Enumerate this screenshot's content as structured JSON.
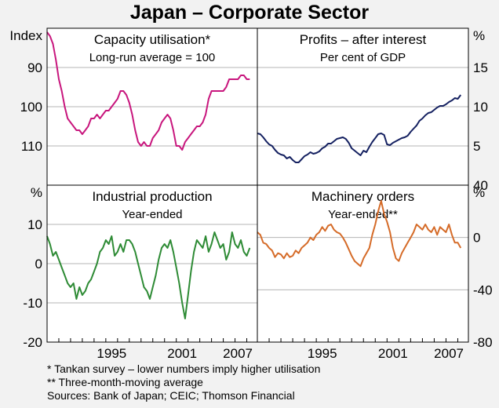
{
  "title": "Japan – Corporate Sector",
  "footnotes": [
    "*   Tankan survey – lower numbers imply higher utilisation",
    "** Three-month-moving average",
    "Sources: Bank of Japan; CEIC; Thomson Financial"
  ],
  "colors": {
    "background": "#f2f2f2",
    "plot_background": "#ffffff",
    "capacity": "#c8167d",
    "profits": "#142060",
    "industrial": "#2e8b35",
    "machinery": "#d56b28",
    "grid": "#b5b5b5"
  },
  "x_axis": {
    "range": [
      1990.0,
      2007.9
    ],
    "ticks": [
      "1995",
      "2001",
      "2007"
    ],
    "tick_years": [
      1995,
      2001,
      2007
    ]
  },
  "chart_data": [
    {
      "type": "line",
      "panel": "capacity",
      "title": "Capacity utilisation*",
      "subtitle": "Long-run average = 100",
      "unit_label": "Index",
      "ylim": [
        80,
        120
      ],
      "inverted": true,
      "yticks": [
        "90",
        "100",
        "110"
      ],
      "ytick_values": [
        90,
        100,
        110
      ],
      "series": [
        {
          "name": "Capacity utilisation",
          "color": "#c8167d",
          "x": [
            1990.0,
            1990.25,
            1990.5,
            1990.75,
            1991.0,
            1991.25,
            1991.5,
            1991.75,
            1992.0,
            1992.25,
            1992.5,
            1992.75,
            1993.0,
            1993.25,
            1993.5,
            1993.75,
            1994.0,
            1994.25,
            1994.5,
            1994.75,
            1995.0,
            1995.25,
            1995.5,
            1995.75,
            1996.0,
            1996.25,
            1996.5,
            1996.75,
            1997.0,
            1997.25,
            1997.5,
            1997.75,
            1998.0,
            1998.25,
            1998.5,
            1998.75,
            1999.0,
            1999.25,
            1999.5,
            1999.75,
            2000.0,
            2000.25,
            2000.5,
            2000.75,
            2001.0,
            2001.25,
            2001.5,
            2001.75,
            2002.0,
            2002.25,
            2002.5,
            2002.75,
            2003.0,
            2003.25,
            2003.5,
            2003.75,
            2004.0,
            2004.25,
            2004.5,
            2004.75,
            2005.0,
            2005.25,
            2005.5,
            2005.75,
            2006.0,
            2006.25,
            2006.5,
            2006.75,
            2007.0,
            2007.25
          ],
          "values": [
            81,
            82,
            84,
            88,
            93,
            96,
            100,
            103,
            104,
            105,
            106,
            106,
            107,
            106,
            105,
            103,
            103,
            102,
            103,
            102,
            101,
            101,
            100,
            99,
            98,
            96,
            96,
            97,
            99,
            102,
            106,
            109,
            110,
            109,
            110,
            110,
            108,
            107,
            106,
            104,
            103,
            102,
            103,
            106,
            110,
            110,
            111,
            109,
            108,
            107,
            106,
            105,
            105,
            104,
            102,
            98,
            96,
            96,
            96,
            96,
            96,
            95,
            93,
            93,
            93,
            93,
            92,
            92,
            93,
            93
          ]
        }
      ]
    },
    {
      "type": "line",
      "panel": "profits",
      "title": "Profits – after interest",
      "subtitle": "Per cent of GDP",
      "unit_label": "%",
      "ylim": [
        0,
        20
      ],
      "inverted": false,
      "yticks": [
        "5",
        "10",
        "15"
      ],
      "ytick_values": [
        5,
        10,
        15
      ],
      "series": [
        {
          "name": "Profits – after interest",
          "color": "#142060",
          "x": [
            1990.0,
            1990.25,
            1990.5,
            1990.75,
            1991.0,
            1991.25,
            1991.5,
            1991.75,
            1992.0,
            1992.25,
            1992.5,
            1992.75,
            1993.0,
            1993.25,
            1993.5,
            1993.75,
            1994.0,
            1994.25,
            1994.5,
            1994.75,
            1995.0,
            1995.25,
            1995.5,
            1995.75,
            1996.0,
            1996.25,
            1996.5,
            1996.75,
            1997.0,
            1997.25,
            1997.5,
            1997.75,
            1998.0,
            1998.25,
            1998.5,
            1998.75,
            1999.0,
            1999.25,
            1999.5,
            1999.75,
            2000.0,
            2000.25,
            2000.5,
            2000.75,
            2001.0,
            2001.25,
            2001.5,
            2001.75,
            2002.0,
            2002.25,
            2002.5,
            2002.75,
            2003.0,
            2003.25,
            2003.5,
            2003.75,
            2004.0,
            2004.25,
            2004.5,
            2004.75,
            2005.0,
            2005.25,
            2005.5,
            2005.75,
            2006.0,
            2006.25,
            2006.5,
            2006.75,
            2007.0,
            2007.25
          ],
          "values": [
            6.6,
            6.5,
            6.1,
            5.6,
            5.2,
            5.0,
            4.5,
            4.1,
            3.9,
            3.8,
            3.4,
            3.6,
            3.2,
            2.9,
            2.9,
            3.3,
            3.7,
            3.9,
            4.2,
            4.0,
            4.1,
            4.3,
            4.7,
            4.9,
            5.3,
            5.3,
            5.6,
            5.9,
            6.0,
            6.1,
            5.9,
            5.4,
            4.7,
            4.4,
            4.1,
            3.8,
            4.4,
            4.2,
            4.9,
            5.5,
            6.0,
            6.5,
            6.6,
            6.4,
            5.2,
            5.1,
            5.4,
            5.6,
            5.8,
            6.0,
            6.1,
            6.3,
            6.8,
            7.2,
            7.6,
            8.2,
            8.5,
            8.9,
            9.2,
            9.3,
            9.6,
            9.9,
            10.1,
            10.1,
            10.3,
            10.6,
            10.8,
            11.1,
            11.0,
            11.5
          ]
        }
      ]
    },
    {
      "type": "line",
      "panel": "industrial",
      "title": "Industrial production",
      "subtitle": "Year-ended",
      "unit_label": "%",
      "ylim": [
        -20,
        20
      ],
      "inverted": false,
      "yticks": [
        "-20",
        "-10",
        "0",
        "10"
      ],
      "ytick_values": [
        -20,
        -10,
        0,
        10
      ],
      "series": [
        {
          "name": "Industrial production",
          "color": "#2e8b35",
          "x": [
            1990.0,
            1990.25,
            1990.5,
            1990.75,
            1991.0,
            1991.25,
            1991.5,
            1991.75,
            1992.0,
            1992.25,
            1992.5,
            1992.75,
            1993.0,
            1993.25,
            1993.5,
            1993.75,
            1994.0,
            1994.25,
            1994.5,
            1994.75,
            1995.0,
            1995.25,
            1995.5,
            1995.75,
            1996.0,
            1996.25,
            1996.5,
            1996.75,
            1997.0,
            1997.25,
            1997.5,
            1997.75,
            1998.0,
            1998.25,
            1998.5,
            1998.75,
            1999.0,
            1999.25,
            1999.5,
            1999.75,
            2000.0,
            2000.25,
            2000.5,
            2000.75,
            2001.0,
            2001.25,
            2001.5,
            2001.75,
            2002.0,
            2002.25,
            2002.5,
            2002.75,
            2003.0,
            2003.25,
            2003.5,
            2003.75,
            2004.0,
            2004.25,
            2004.5,
            2004.75,
            2005.0,
            2005.25,
            2005.5,
            2005.75,
            2006.0,
            2006.25,
            2006.5,
            2006.75,
            2007.0,
            2007.25
          ],
          "values": [
            7,
            5,
            2,
            3,
            1,
            -1,
            -3,
            -5,
            -6,
            -5,
            -9,
            -6,
            -8,
            -7,
            -5,
            -4,
            -2,
            0,
            3,
            4,
            6,
            5,
            7,
            2,
            3,
            5,
            3,
            6,
            6,
            5,
            3,
            0,
            -3,
            -6,
            -7,
            -9,
            -6,
            -3,
            1,
            4,
            5,
            4,
            6,
            3,
            -1,
            -5,
            -10,
            -14,
            -8,
            -2,
            3,
            6,
            5,
            4,
            7,
            3,
            5,
            8,
            6,
            4,
            5,
            1,
            3,
            8,
            5,
            4,
            6,
            3,
            2,
            4
          ]
        }
      ]
    },
    {
      "type": "line",
      "panel": "machinery",
      "title": "Machinery orders",
      "subtitle": "Year-ended**",
      "unit_label": "%",
      "ylim": [
        -80,
        40
      ],
      "inverted": false,
      "yticks": [
        "-80",
        "-40",
        "0",
        "40"
      ],
      "ytick_values": [
        -80,
        -40,
        0,
        40
      ],
      "series": [
        {
          "name": "Machinery orders",
          "color": "#d56b28",
          "x": [
            1990.0,
            1990.25,
            1990.5,
            1990.75,
            1991.0,
            1991.25,
            1991.5,
            1991.75,
            1992.0,
            1992.25,
            1992.5,
            1992.75,
            1993.0,
            1993.25,
            1993.5,
            1993.75,
            1994.0,
            1994.25,
            1994.5,
            1994.75,
            1995.0,
            1995.25,
            1995.5,
            1995.75,
            1996.0,
            1996.25,
            1996.5,
            1996.75,
            1997.0,
            1997.25,
            1997.5,
            1997.75,
            1998.0,
            1998.25,
            1998.5,
            1998.75,
            1999.0,
            1999.25,
            1999.5,
            1999.75,
            2000.0,
            2000.25,
            2000.5,
            2000.75,
            2001.0,
            2001.25,
            2001.5,
            2001.75,
            2002.0,
            2002.25,
            2002.5,
            2002.75,
            2003.0,
            2003.25,
            2003.5,
            2003.75,
            2004.0,
            2004.25,
            2004.5,
            2004.75,
            2005.0,
            2005.25,
            2005.5,
            2005.75,
            2006.0,
            2006.25,
            2006.5,
            2006.75,
            2007.0,
            2007.25
          ],
          "values": [
            4,
            2,
            -4,
            -5,
            -8,
            -10,
            -15,
            -12,
            -13,
            -16,
            -12,
            -15,
            -14,
            -10,
            -12,
            -8,
            -6,
            -4,
            0,
            -2,
            2,
            4,
            8,
            5,
            9,
            10,
            6,
            4,
            3,
            0,
            -4,
            -9,
            -14,
            -18,
            -20,
            -22,
            -16,
            -12,
            -8,
            2,
            10,
            20,
            28,
            18,
            12,
            4,
            -8,
            -16,
            -18,
            -12,
            -8,
            -4,
            0,
            4,
            10,
            8,
            6,
            10,
            6,
            4,
            8,
            2,
            8,
            6,
            4,
            10,
            2,
            -4,
            -4,
            -8
          ]
        }
      ]
    }
  ]
}
